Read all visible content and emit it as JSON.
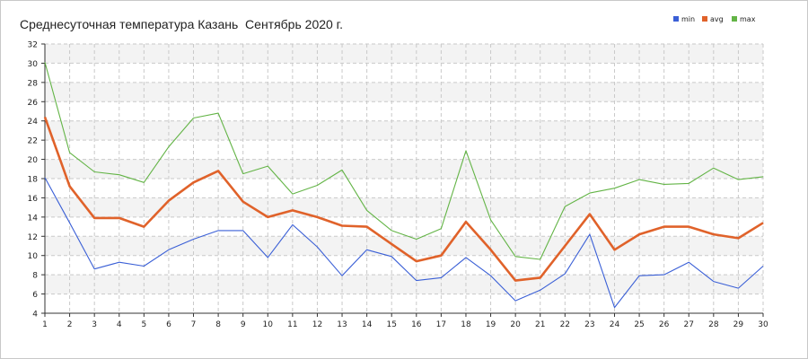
{
  "chart_data": {
    "type": "line",
    "title": "Среднесуточная температура Казань  Сентябрь 2020 г.",
    "xlabel": "",
    "ylabel": "",
    "x": [
      1,
      2,
      3,
      4,
      5,
      6,
      7,
      8,
      9,
      10,
      11,
      12,
      13,
      14,
      15,
      16,
      17,
      18,
      19,
      20,
      21,
      22,
      23,
      24,
      25,
      26,
      27,
      28,
      29,
      30
    ],
    "ylim": [
      4,
      32
    ],
    "yticks": [
      4,
      6,
      8,
      10,
      12,
      14,
      16,
      18,
      20,
      22,
      24,
      26,
      28,
      30,
      32
    ],
    "grid": true,
    "legend_position": "top-right",
    "series": [
      {
        "name": "min",
        "color": "#3a5fd6",
        "values": [
          18.1,
          13.4,
          8.6,
          9.3,
          8.9,
          10.6,
          11.7,
          12.6,
          12.6,
          9.8,
          13.2,
          10.9,
          7.9,
          10.6,
          9.9,
          7.4,
          7.7,
          9.8,
          7.9,
          5.3,
          6.4,
          8.1,
          12.2,
          4.6,
          7.9,
          8.0,
          9.3,
          7.3,
          6.6,
          8.9
        ]
      },
      {
        "name": "avg",
        "color": "#e0622a",
        "values": [
          24.4,
          17.2,
          13.9,
          13.9,
          13.0,
          15.7,
          17.6,
          18.8,
          15.6,
          14.0,
          14.7,
          14.0,
          13.1,
          13.0,
          11.2,
          9.4,
          10.0,
          13.5,
          10.6,
          7.4,
          7.7,
          11.0,
          14.3,
          10.6,
          12.2,
          13.0,
          13.0,
          12.2,
          11.8,
          13.4
        ]
      },
      {
        "name": "max",
        "color": "#63b446",
        "values": [
          30.1,
          20.7,
          18.7,
          18.4,
          17.6,
          21.3,
          24.3,
          24.8,
          18.5,
          19.3,
          16.4,
          17.3,
          18.9,
          14.7,
          12.6,
          11.7,
          12.8,
          20.9,
          13.7,
          9.9,
          9.6,
          15.1,
          16.5,
          17.0,
          17.9,
          17.4,
          17.5,
          19.1,
          17.9,
          18.2
        ]
      }
    ]
  }
}
